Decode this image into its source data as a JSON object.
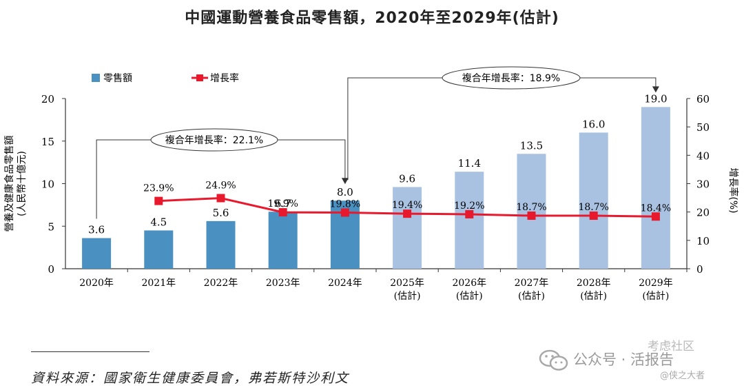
{
  "title": "中國運動營養食品零售額，2020年至2029年(估計)",
  "chart_data": {
    "type": "bar",
    "categories": [
      "2020年",
      "2021年",
      "2022年",
      "2023年",
      "2024年",
      "2025年\n(估計)",
      "2026年\n(估計)",
      "2027年\n(估計)",
      "2028年\n(估計)",
      "2029年\n(估計)"
    ],
    "series": [
      {
        "name": "零售額",
        "type": "bar",
        "axis": "left",
        "values": [
          3.6,
          4.5,
          5.6,
          6.7,
          8.0,
          9.6,
          11.4,
          13.5,
          16.0,
          19.0
        ],
        "labels": [
          "3.6",
          "4.5",
          "5.6",
          "6.7",
          "8.0",
          "9.6",
          "11.4",
          "13.5",
          "16.0",
          "19.0"
        ]
      },
      {
        "name": "增長率",
        "type": "line",
        "axis": "right",
        "values": [
          null,
          23.9,
          24.9,
          19.9,
          19.8,
          19.4,
          19.2,
          18.7,
          18.7,
          18.4
        ],
        "labels": [
          "",
          "23.9%",
          "24.9%",
          "19.9%",
          "19.8%",
          "19.4%",
          "19.2%",
          "18.7%",
          "18.7%",
          "18.4%"
        ]
      }
    ],
    "ylabel": "營養及健康食品零售額\n(人民幣十億元)",
    "ylabel_right": "增長率(%)",
    "ylim": [
      0,
      20
    ],
    "yticks": [
      "0",
      "5",
      "10",
      "15",
      "20"
    ],
    "ylim_right": [
      0,
      60
    ],
    "yticks_right": [
      "0",
      "10",
      "20",
      "30",
      "40",
      "50",
      "60"
    ],
    "legend_placement": "top-left",
    "colors": {
      "actual_bar": "#4a90c0",
      "forecast_bar": "#a9c2e2",
      "line": "#e8192c",
      "axis": "#333333"
    },
    "annotations": [
      {
        "text": "複合年增長率：22.1%",
        "from": "2020年",
        "to": "2024年"
      },
      {
        "text": "複合年增長率：18.9%",
        "from": "2024年",
        "to": "2029年"
      }
    ]
  },
  "source": "資料來源：國家衛生健康委員會，弗若斯特沙利文",
  "watermark": {
    "text": "公众号 · 活报告",
    "sub": "考虑社区",
    "small": "@侠之大者"
  }
}
